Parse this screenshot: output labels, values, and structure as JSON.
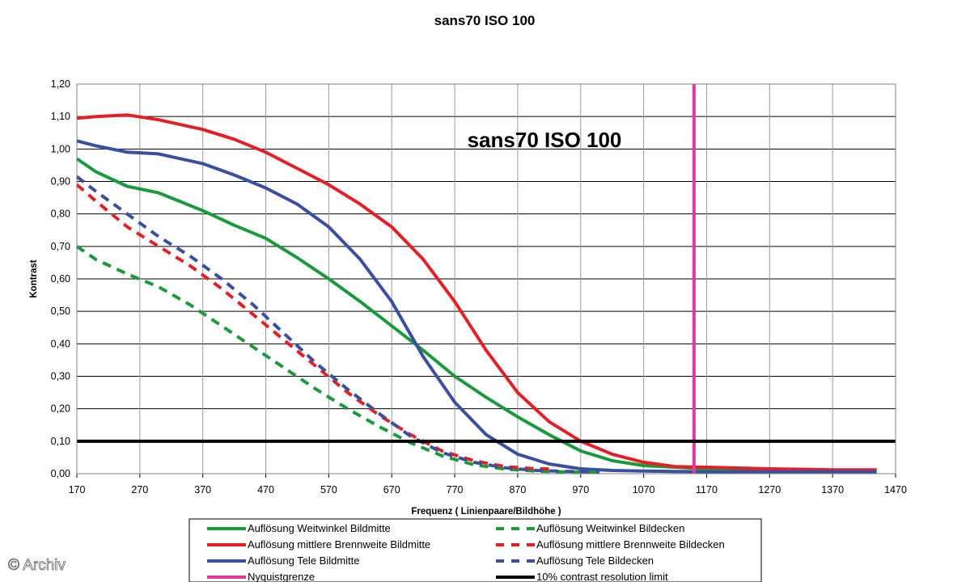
{
  "chart_data": {
    "type": "line",
    "title": "sans70 ISO 100",
    "inner_title": "sans70 ISO 100",
    "xlabel": "Frequenz ( Linienpaare/Bildhöhe )",
    "ylabel": "Kontrast",
    "xlim": [
      170,
      1470
    ],
    "ylim": [
      0,
      1.2
    ],
    "x_ticks": [
      "170",
      "270",
      "370",
      "470",
      "570",
      "670",
      "770",
      "870",
      "970",
      "1070",
      "1170",
      "1270",
      "1370",
      "1470"
    ],
    "y_ticks": [
      "0,00",
      "0,10",
      "0,20",
      "0,30",
      "0,40",
      "0,50",
      "0,60",
      "0,70",
      "0,80",
      "0,90",
      "1,00",
      "1,10",
      "1,20"
    ],
    "grid": "horizontal",
    "legend_position": "bottom",
    "series": [
      {
        "name": "Auflösung Weitwinkel Bildmitte",
        "color": "#1a9a3a",
        "style": "solid",
        "x": [
          170,
          200,
          250,
          300,
          370,
          420,
          470,
          520,
          570,
          620,
          670,
          720,
          770,
          820,
          870,
          920,
          970,
          1020,
          1070,
          1120,
          1170,
          1270,
          1370,
          1440
        ],
        "y": [
          0.97,
          0.93,
          0.885,
          0.865,
          0.81,
          0.765,
          0.725,
          0.665,
          0.6,
          0.53,
          0.455,
          0.38,
          0.3,
          0.235,
          0.175,
          0.12,
          0.07,
          0.04,
          0.025,
          0.02,
          0.015,
          0.012,
          0.01,
          0.01
        ]
      },
      {
        "name": "Auflösung mittlere Brennweite Bildmitte",
        "color": "#e32026",
        "style": "solid",
        "x": [
          170,
          200,
          250,
          300,
          370,
          420,
          470,
          520,
          570,
          620,
          670,
          720,
          770,
          820,
          870,
          920,
          970,
          1020,
          1070,
          1120,
          1170,
          1270,
          1370,
          1440
        ],
        "y": [
          1.095,
          1.1,
          1.105,
          1.09,
          1.06,
          1.03,
          0.99,
          0.94,
          0.89,
          0.83,
          0.76,
          0.66,
          0.53,
          0.38,
          0.25,
          0.16,
          0.1,
          0.06,
          0.035,
          0.022,
          0.02,
          0.015,
          0.012,
          0.012
        ]
      },
      {
        "name": "Auflösung Tele Bildmitte",
        "color": "#3a4fa0",
        "style": "solid",
        "x": [
          170,
          200,
          250,
          300,
          370,
          420,
          470,
          520,
          570,
          620,
          670,
          720,
          770,
          820,
          870,
          920,
          970,
          1020,
          1070,
          1120,
          1170,
          1270,
          1370,
          1440
        ],
        "y": [
          1.025,
          1.01,
          0.99,
          0.985,
          0.955,
          0.92,
          0.88,
          0.83,
          0.76,
          0.66,
          0.53,
          0.36,
          0.22,
          0.12,
          0.06,
          0.03,
          0.015,
          0.01,
          0.008,
          0.007,
          0.006,
          0.006,
          0.006,
          0.006
        ]
      },
      {
        "name": "Auflösung Weitwinkel Bildecken",
        "color": "#1a9a3a",
        "style": "dashed",
        "x": [
          170,
          200,
          250,
          300,
          350,
          400,
          450,
          500,
          550,
          600,
          650,
          700,
          750,
          800,
          850,
          900,
          950,
          1000
        ],
        "y": [
          0.7,
          0.66,
          0.615,
          0.575,
          0.52,
          0.455,
          0.39,
          0.325,
          0.26,
          0.2,
          0.145,
          0.095,
          0.055,
          0.028,
          0.014,
          0.008,
          0.005,
          0.005
        ]
      },
      {
        "name": "Auflösung mittlere Brennweite Bildecken",
        "color": "#e32026",
        "style": "dashed",
        "x": [
          170,
          200,
          250,
          300,
          350,
          400,
          450,
          500,
          550,
          600,
          650,
          700,
          750,
          800,
          850,
          900,
          930
        ],
        "y": [
          0.89,
          0.84,
          0.76,
          0.7,
          0.64,
          0.57,
          0.49,
          0.41,
          0.33,
          0.25,
          0.18,
          0.12,
          0.07,
          0.04,
          0.022,
          0.015,
          0.015
        ]
      },
      {
        "name": "Auflösung Tele Bildecken",
        "color": "#3a4fa0",
        "style": "dashed",
        "x": [
          170,
          200,
          250,
          300,
          350,
          400,
          450,
          500,
          550,
          600,
          650,
          700,
          750,
          800,
          850,
          900,
          950,
          1000
        ],
        "y": [
          0.915,
          0.87,
          0.8,
          0.73,
          0.67,
          0.6,
          0.52,
          0.43,
          0.34,
          0.26,
          0.185,
          0.115,
          0.065,
          0.035,
          0.018,
          0.01,
          0.007,
          0.006
        ]
      },
      {
        "name": "Nyquistgrenze",
        "color": "#e03aa0",
        "style": "vertical",
        "x_value": 1150
      },
      {
        "name": "10% contrast resolution limit",
        "color": "#000000",
        "style": "horizontal",
        "y_value": 0.1
      }
    ]
  },
  "watermark": "© Archiv"
}
